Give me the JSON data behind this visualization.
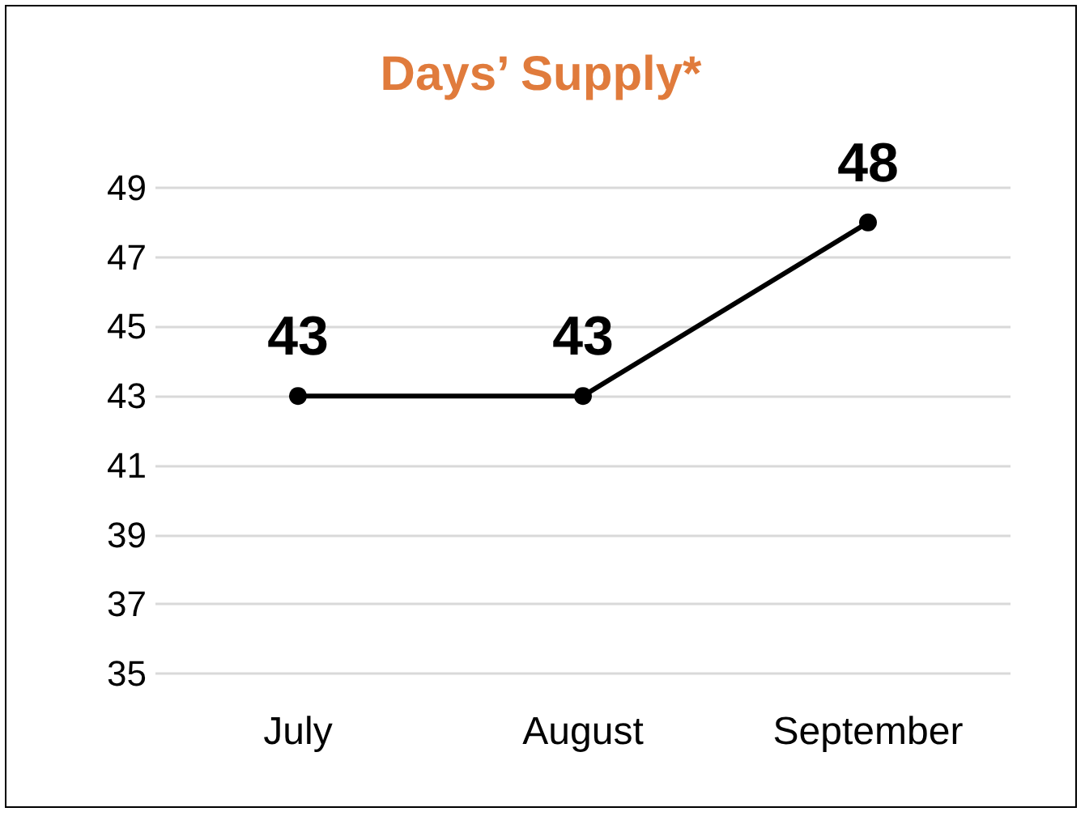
{
  "chart_data": {
    "type": "line",
    "title": "Days’ Supply*",
    "categories": [
      "July",
      "August",
      "September"
    ],
    "series": [
      {
        "color": "#000000",
        "values": [
          43,
          43,
          48
        ]
      }
    ],
    "ylim": [
      35,
      49
    ],
    "yticks": [
      35,
      37,
      39,
      41,
      43,
      45,
      47,
      49
    ],
    "grid": "y",
    "marker": "circle",
    "line_style": "solid",
    "data_labels": true
  }
}
